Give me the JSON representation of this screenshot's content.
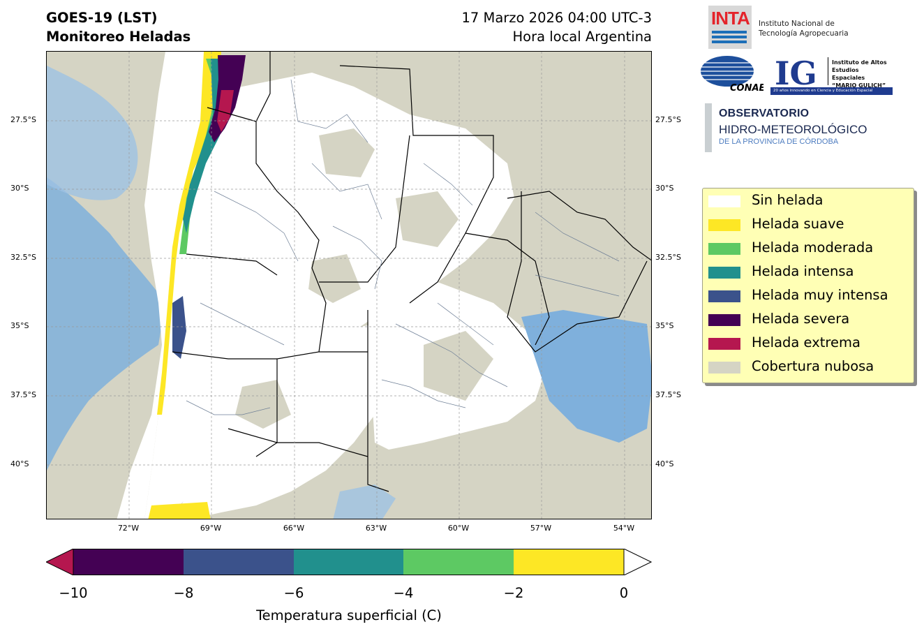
{
  "header": {
    "title_line1": "GOES-19 (LST)",
    "title_line2": "Monitoreo Heladas",
    "date_line1": "17 Marzo 2026 04:00 UTC-3",
    "date_line2": "Hora local Argentina"
  },
  "map": {
    "lat_labels": [
      "27.5°S",
      "30°S",
      "32.5°S",
      "35°S",
      "37.5°S",
      "40°S"
    ],
    "lon_labels": [
      "72°W",
      "69°W",
      "66°W",
      "63°W",
      "60°W",
      "57°W",
      "54°W"
    ],
    "colors": {
      "cloud": "#d5d4c4",
      "no_frost": "#ffffff",
      "water": "#7fb0dc",
      "province_border": "#000000",
      "department_border": "#6e7f96"
    }
  },
  "colorbar": {
    "ticks": [
      "−10",
      "−8",
      "−6",
      "−4",
      "−2",
      "0"
    ],
    "label": "Temperatura superficial (C)",
    "colors": [
      "#440154",
      "#3b528b",
      "#21908d",
      "#5dc963",
      "#fde725"
    ],
    "under_color": "#b5174f",
    "over_color": "#ffffff"
  },
  "legend": {
    "items": [
      {
        "label": "Sin helada",
        "color": "#ffffff"
      },
      {
        "label": "Helada suave",
        "color": "#fde725"
      },
      {
        "label": "Helada moderada",
        "color": "#5dc963"
      },
      {
        "label": "Helada intensa",
        "color": "#21908d"
      },
      {
        "label": "Helada muy intensa",
        "color": "#3b528b"
      },
      {
        "label": "Helada severa",
        "color": "#440154"
      },
      {
        "label": "Helada extrema",
        "color": "#b5174f"
      },
      {
        "label": "Cobertura nubosa",
        "color": "#d5d4c4"
      }
    ]
  },
  "logos": {
    "inta_word": "INTA",
    "inta_name_line1": "Instituto Nacional de",
    "inta_name_line2": "Tecnología Agropecuaria",
    "conae_word": "CONAE",
    "ig_word": "IG",
    "ig_line1": "Instituto de Altos",
    "ig_line2": "Estudios Espaciales",
    "ig_line3": "“MARIO GULICH”",
    "ig_tagline": "20 años innovando en Ciencia y Educación Espacial",
    "obs_line1": "OBSERVATORIO",
    "obs_line2": "HIDRO-METEOROLÓGICO",
    "obs_line3": "DE LA PROVINCIA DE CÓRDOBA"
  }
}
